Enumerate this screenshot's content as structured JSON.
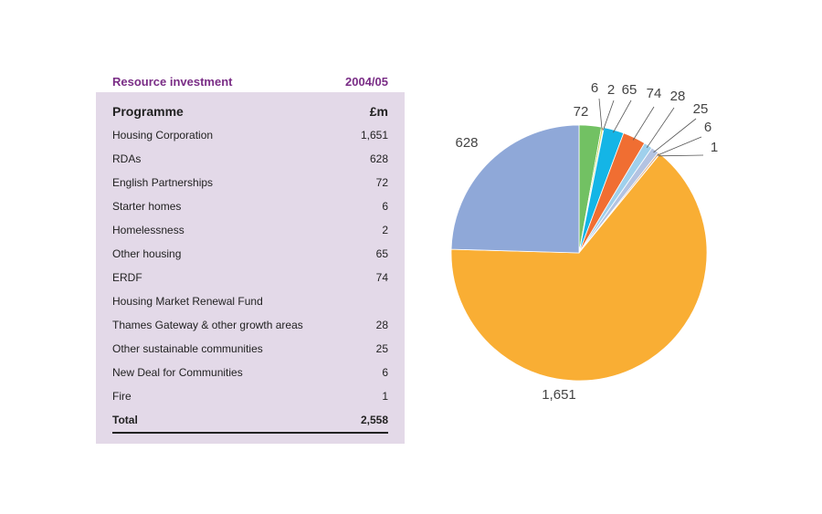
{
  "table": {
    "title": "Resource investment",
    "year": "2004/05",
    "col_programme": "Programme",
    "col_amount": "£m",
    "rows": [
      {
        "label": "Housing Corporation",
        "value": "1,651"
      },
      {
        "label": "RDAs",
        "value": "628"
      },
      {
        "label": "English Partnerships",
        "value": "72"
      },
      {
        "label": "Starter homes",
        "value": "6"
      },
      {
        "label": "Homelessness",
        "value": "2"
      },
      {
        "label": "Other housing",
        "value": "65"
      },
      {
        "label": "ERDF",
        "value": "74"
      },
      {
        "label": "Housing Market Renewal Fund",
        "value": ""
      },
      {
        "label": "Thames Gateway & other growth areas",
        "value": "28"
      },
      {
        "label": "Other sustainable communities",
        "value": "25"
      },
      {
        "label": "New Deal for Communities",
        "value": "6"
      },
      {
        "label": "Fire",
        "value": "1"
      }
    ],
    "total_label": "Total",
    "total_value": "2,558"
  },
  "chart_data": {
    "type": "pie",
    "slices": [
      {
        "label": "1,651",
        "value": 1651,
        "color": "#f9ae34"
      },
      {
        "label": "628",
        "value": 628,
        "color": "#8fa8d8"
      },
      {
        "label": "72",
        "value": 72,
        "color": "#72c163"
      },
      {
        "label": "6",
        "value": 6,
        "color": "#c8d85a"
      },
      {
        "label": "2",
        "value": 2,
        "color": "#2a9fd8"
      },
      {
        "label": "65",
        "value": 65,
        "color": "#14b5e6"
      },
      {
        "label": "74",
        "value": 74,
        "color": "#f06e32"
      },
      {
        "label": "28",
        "value": 28,
        "color": "#9fd0ec"
      },
      {
        "label": "25",
        "value": 25,
        "color": "#b3c3e2"
      },
      {
        "label": "6",
        "value": 6,
        "color": "#d8a880"
      },
      {
        "label": "1",
        "value": 1,
        "color": "#bdbdbd"
      }
    ]
  }
}
